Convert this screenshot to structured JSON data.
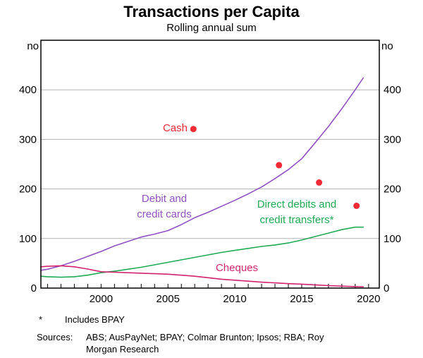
{
  "figure": {
    "title": "Transactions per Capita",
    "subtitle": "Rolling annual sum",
    "unit_left": "no",
    "unit_right": "no"
  },
  "colors": {
    "cards": "#9152c3",
    "transfers": "#22aa55",
    "cheques": "#d0256e",
    "cash": "#f02b35",
    "grid": "#b3b3b3",
    "axis": "#000000",
    "text": "#000000"
  },
  "chart_data": {
    "type": "line",
    "title": "Transactions per Capita",
    "subtitle": "Rolling annual sum",
    "xlabel": "",
    "ylabel": "no",
    "ylim": [
      0,
      500
    ],
    "xlim": [
      1995.5,
      2020.8
    ],
    "grid": "horizontal",
    "yticks": [
      0,
      100,
      200,
      300,
      400
    ],
    "xticks": [
      2000,
      2005,
      2010,
      2015,
      2020
    ],
    "minor_xtick_years": [
      1996,
      2020
    ],
    "series": [
      {
        "name": "Debit and credit cards",
        "color_key": "cards",
        "x": [
          1995.5,
          1996,
          1997,
          1998,
          1999,
          2000,
          2001,
          2002,
          2003,
          2004,
          2005,
          2006,
          2007,
          2008,
          2009,
          2010,
          2011,
          2012,
          2013,
          2014,
          2015,
          2016,
          2017,
          2018,
          2019,
          2019.6
        ],
        "y": [
          36,
          38,
          45,
          54,
          64,
          74,
          85,
          94,
          103,
          109,
          116,
          128,
          142,
          153,
          165,
          177,
          190,
          204,
          221,
          239,
          261,
          293,
          326,
          362,
          400,
          424
        ]
      },
      {
        "name": "Direct debits and credit transfers*",
        "color_key": "transfers",
        "x": [
          1995.5,
          1996,
          1997,
          1998,
          1999,
          2000,
          2001,
          2002,
          2003,
          2004,
          2005,
          2006,
          2007,
          2008,
          2009,
          2010,
          2011,
          2012,
          2013,
          2014,
          2015,
          2016,
          2017,
          2018,
          2019,
          2019.6
        ],
        "y": [
          24,
          23,
          22,
          23,
          26,
          31,
          34,
          38,
          42,
          47,
          52,
          57,
          62,
          67,
          72,
          76,
          80,
          84,
          87,
          91,
          97,
          104,
          111,
          118,
          123,
          123
        ]
      },
      {
        "name": "Cheques",
        "color_key": "cheques",
        "x": [
          1995.5,
          1996,
          1997,
          1998,
          1999,
          2000,
          2001,
          2002,
          2003,
          2004,
          2005,
          2006,
          2007,
          2008,
          2009,
          2010,
          2011,
          2012,
          2013,
          2014,
          2015,
          2016,
          2017,
          2018,
          2019,
          2019.6
        ],
        "y": [
          43,
          44,
          45,
          43,
          38.5,
          33,
          32,
          31,
          30,
          29,
          28,
          26,
          24,
          21,
          18,
          16,
          14,
          12,
          10.5,
          9,
          8,
          6.5,
          5,
          4,
          3,
          2.5
        ]
      }
    ],
    "points_series": {
      "name": "Cash",
      "color_key": "cash",
      "points": [
        [
          2006.9,
          321
        ],
        [
          2013.3,
          248
        ],
        [
          2016.3,
          213
        ],
        [
          2019.1,
          166
        ]
      ]
    }
  },
  "annotations": {
    "cash": "Cash",
    "cards_line1": "Debit and",
    "cards_line2": "credit cards",
    "transfers_line1": "Direct debits and",
    "transfers_line2": "credit transfers*",
    "cheques": "Cheques"
  },
  "footnotes": {
    "marker": "*",
    "note": "Includes BPAY",
    "sources_label": "Sources:",
    "sources_line1": "ABS; AusPayNet; BPAY; Colmar Brunton; Ipsos; RBA; Roy",
    "sources_line2": "Morgan Research"
  }
}
